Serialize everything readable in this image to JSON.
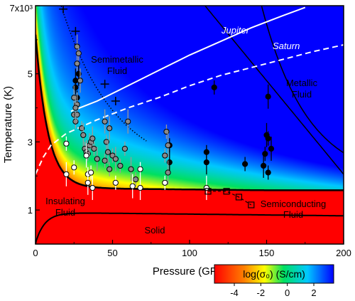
{
  "chart_data": {
    "type": "scatter",
    "title": "",
    "xlabel": "Pressure (GPa)",
    "ylabel": "Temperature (K)",
    "xlim": [
      0,
      200
    ],
    "ylim": [
      0,
      7000
    ],
    "x_ticks": [
      "0",
      "50",
      "100",
      "150",
      "200"
    ],
    "y_ticks": [
      "1",
      "3",
      "5",
      "7x10³"
    ],
    "y_tick_values": [
      1000,
      3000,
      5000,
      7000
    ],
    "colorbar": {
      "label": "log(σ₀)  (S/cm)",
      "ticks": [
        "-4",
        "-2",
        "0",
        "2"
      ],
      "tick_values": [
        -4,
        -2,
        0,
        2
      ],
      "range": [
        -5.5,
        3.5
      ],
      "colors": [
        "#ff0000",
        "#ff8000",
        "#ffff00",
        "#00e060",
        "#00c8ff",
        "#0000ff"
      ]
    },
    "regions": [
      {
        "name": "insulating",
        "label_lines": [
          "Insulating",
          "Fluid"
        ]
      },
      {
        "name": "semimetallic",
        "label_lines": [
          "Semimetallic",
          "Fluid"
        ]
      },
      {
        "name": "metallic",
        "label_lines": [
          "Metallic",
          "Fluid"
        ]
      },
      {
        "name": "semiconducting",
        "label_lines": [
          "Semiconducting",
          "Fluid"
        ]
      },
      {
        "name": "solid",
        "label_lines": [
          "Solid"
        ]
      }
    ],
    "planets": [
      {
        "name": "Jupiter",
        "points": [
          [
            23,
            3900
          ],
          [
            40,
            4200
          ],
          [
            60,
            4650
          ],
          [
            80,
            5100
          ],
          [
            100,
            5550
          ],
          [
            120,
            5950
          ],
          [
            140,
            6350
          ],
          [
            160,
            6700
          ],
          [
            175,
            6950
          ]
        ]
      },
      {
        "name": "Saturn",
        "points": [
          [
            0,
            2050
          ],
          [
            5,
            2550
          ],
          [
            10,
            2900
          ],
          [
            20,
            3250
          ],
          [
            40,
            3650
          ],
          [
            60,
            4000
          ],
          [
            80,
            4300
          ],
          [
            100,
            4650
          ],
          [
            120,
            4950
          ],
          [
            150,
            5300
          ],
          [
            180,
            5650
          ],
          [
            200,
            5850
          ]
        ]
      }
    ],
    "series": [
      {
        "name": "black",
        "points": [
          [
            26,
            4600
          ],
          [
            26,
            4800
          ],
          [
            27,
            4300
          ],
          [
            28,
            5000
          ],
          [
            116,
            4600
          ],
          [
            151,
            4330
          ],
          [
            87,
            2900
          ],
          [
            87,
            2400
          ],
          [
            111,
            2700
          ],
          [
            111,
            2400
          ],
          [
            136,
            2350
          ],
          [
            148,
            2300
          ],
          [
            149,
            2650
          ],
          [
            150,
            3200
          ],
          [
            151,
            3100
          ],
          [
            153,
            2800
          ],
          [
            151,
            2100
          ]
        ]
      },
      {
        "name": "gray",
        "points": [
          [
            25,
            3800
          ],
          [
            25,
            4300
          ],
          [
            26,
            3600
          ],
          [
            27,
            4100
          ],
          [
            27,
            3800
          ],
          [
            26,
            4000
          ],
          [
            27,
            5300
          ],
          [
            27,
            5800
          ],
          [
            28,
            5600
          ],
          [
            29,
            4800
          ],
          [
            30,
            3400
          ],
          [
            31,
            3200
          ],
          [
            32,
            2800
          ],
          [
            33,
            2700
          ],
          [
            34,
            2650
          ],
          [
            35,
            2900
          ],
          [
            36,
            3000
          ],
          [
            37,
            3100
          ],
          [
            38,
            2800
          ],
          [
            40,
            2500
          ],
          [
            45,
            2450
          ],
          [
            45,
            3600
          ],
          [
            46,
            3000
          ],
          [
            47,
            2700
          ],
          [
            48,
            2200
          ],
          [
            48,
            3400
          ],
          [
            50,
            2600
          ],
          [
            52,
            2500
          ],
          [
            55,
            2300
          ],
          [
            60,
            3600
          ],
          [
            58,
            2800
          ],
          [
            62,
            2200
          ],
          [
            85,
            3300
          ],
          [
            86,
            2900
          ],
          [
            84,
            2600
          ],
          [
            86,
            2100
          ],
          [
            65,
            1900
          ]
        ]
      },
      {
        "name": "white",
        "points": [
          [
            20,
            2950
          ],
          [
            20,
            2050
          ],
          [
            25,
            2250
          ],
          [
            33,
            2600
          ],
          [
            34,
            2050
          ],
          [
            34,
            1800
          ],
          [
            36,
            2100
          ],
          [
            37,
            1650
          ],
          [
            52,
            1800
          ],
          [
            63,
            1700
          ],
          [
            68,
            2200
          ],
          [
            68,
            1650
          ],
          [
            84,
            1800
          ],
          [
            111,
            1650
          ]
        ]
      },
      {
        "name": "squares",
        "points": [
          [
            112,
            1550
          ],
          [
            124,
            1550
          ],
          [
            132,
            1380
          ],
          [
            140,
            1150
          ]
        ]
      }
    ]
  }
}
